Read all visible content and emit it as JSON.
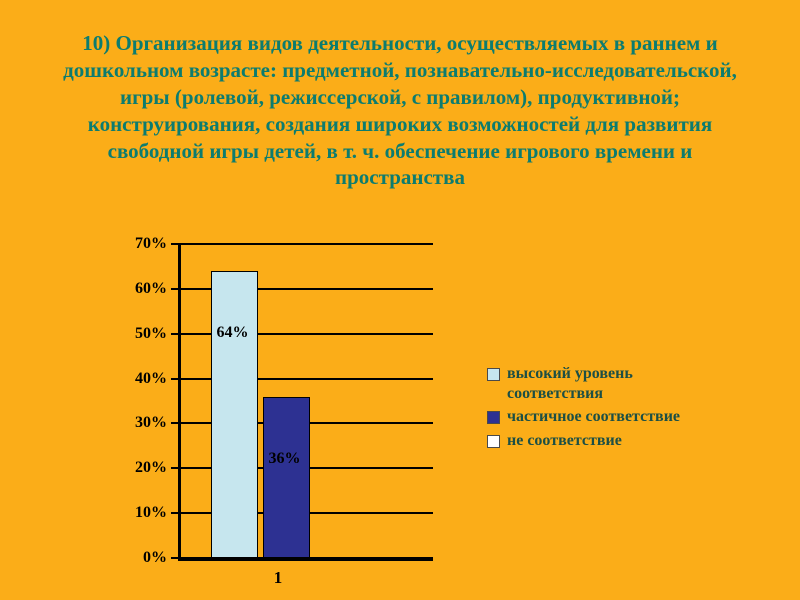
{
  "slide": {
    "title": "10) Организация видов деятельности, осуществляемых в раннем и дошкольном возрасте: предметной, познавательно-исследовательской, игры (ролевой, режиссерской, с правилом), продуктивной; конструирования, создания широких возможностей для развития свободной игры детей, в т. ч. обеспечение игрового времени и пространства",
    "category_label": "1"
  },
  "colors": {
    "background": "#FBAD18",
    "title_text": "#0C7C6F",
    "legend_text": "#1C4F45",
    "axis": "#000000",
    "bar_high": "#C6E6EE",
    "bar_partial": "#2D3192",
    "bar_none": "#FFFFFF"
  },
  "chart_data": {
    "type": "bar",
    "title": "",
    "xlabel": "",
    "ylabel": "",
    "categories": [
      "1"
    ],
    "series": [
      {
        "name": "высокий уровень соответствия",
        "values": [
          64
        ],
        "color": "#C6E6EE",
        "label": "64%"
      },
      {
        "name": "частичное соответствие",
        "values": [
          36
        ],
        "color": "#2D3192",
        "label": "36%"
      },
      {
        "name": "не соответствие",
        "values": [
          0
        ],
        "color": "#FFFFFF",
        "label": ""
      }
    ],
    "ylim": [
      0,
      70
    ],
    "yticks": [
      "0%",
      "10%",
      "20%",
      "30%",
      "40%",
      "50%",
      "60%",
      "70%"
    ],
    "grid": true,
    "legend_position": "right"
  }
}
